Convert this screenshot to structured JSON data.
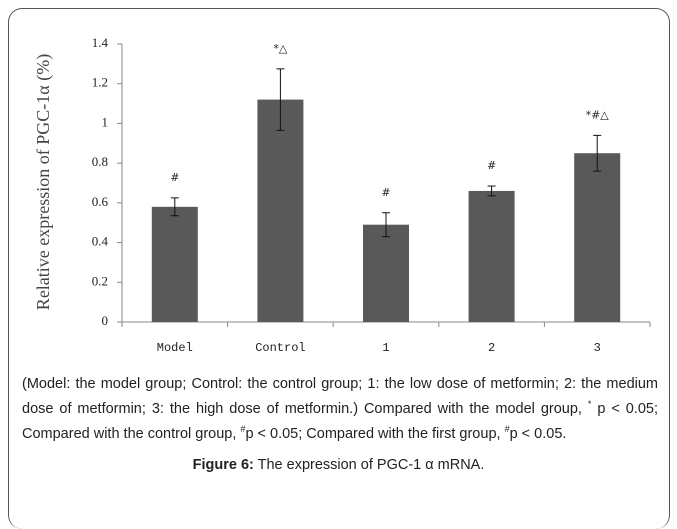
{
  "chart_data": {
    "type": "bar",
    "ylabel": "Relative expression of PGC-1α (%)",
    "categories": [
      "Model",
      "Control",
      "1",
      "2",
      "3"
    ],
    "values": [
      0.58,
      1.12,
      0.49,
      0.66,
      0.85
    ],
    "errors": [
      0.045,
      0.155,
      0.06,
      0.025,
      0.09
    ],
    "annotations": [
      "#",
      "*△",
      "#",
      "#",
      "*#△"
    ],
    "color": "#595959",
    "ylim": [
      0,
      1.4
    ],
    "yticks": [
      0,
      0.2,
      0.4,
      0.6,
      0.8,
      1,
      1.2,
      1.4
    ],
    "grid": false,
    "notes": [
      "(Model: the model group; Control: the control group; 1: the low dose of metformin; 2: the medium dose of metformin; 3: the high dose of metformin.) Compared with the model group, ",
      "*",
      " p < 0.05; Compared with the control group, ",
      "#",
      "p < 0.05; Compared with the first group, ",
      "#",
      "p < 0.05."
    ],
    "caption_label": "Figure 6:",
    "caption": " The expression of  PGC-1 α mRNA."
  }
}
